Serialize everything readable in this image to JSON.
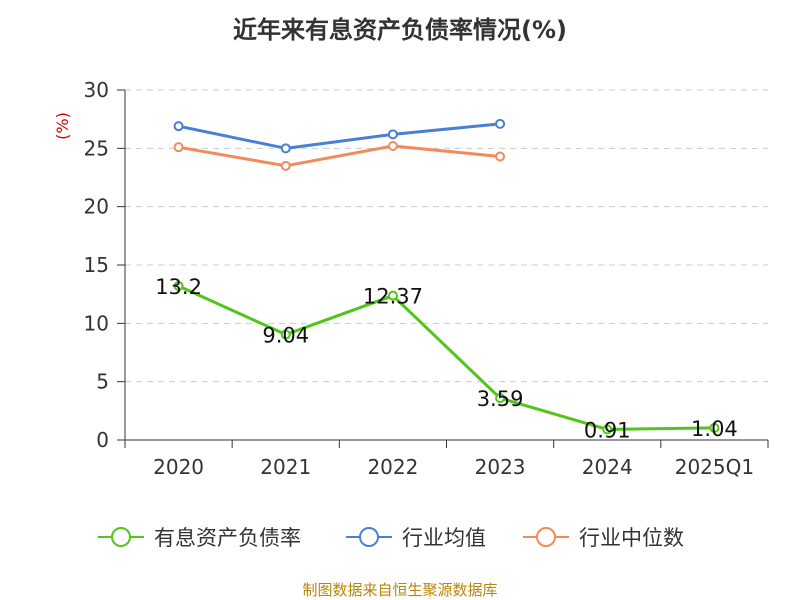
{
  "chart_data": {
    "type": "line",
    "title": "近年来有息资产负债率情况(%)",
    "ylabel": "(%)",
    "xlabel": "",
    "categories": [
      "2020",
      "2021",
      "2022",
      "2023",
      "2024",
      "2025Q1"
    ],
    "ylim": [
      0,
      30
    ],
    "yticks": [
      0,
      5,
      10,
      15,
      20,
      25,
      30
    ],
    "grid": true,
    "legend_position": "bottom",
    "series": [
      {
        "name": "有息资产负债率",
        "color": "#52c41a",
        "values": [
          13.2,
          9.04,
          12.37,
          3.59,
          0.91,
          1.04
        ],
        "data_labels": [
          "13.2",
          "9.04",
          "12.37",
          "3.59",
          "0.91",
          "1.04"
        ]
      },
      {
        "name": "行业均值",
        "color": "#4a7fd6",
        "values": [
          26.9,
          25.0,
          26.2,
          27.1,
          null,
          null
        ],
        "data_labels": []
      },
      {
        "name": "行业中位数",
        "color": "#f28a5a",
        "values": [
          25.1,
          23.5,
          25.2,
          24.3,
          null,
          null
        ],
        "data_labels": []
      }
    ]
  },
  "source_note": "制图数据来自恒生聚源数据库"
}
